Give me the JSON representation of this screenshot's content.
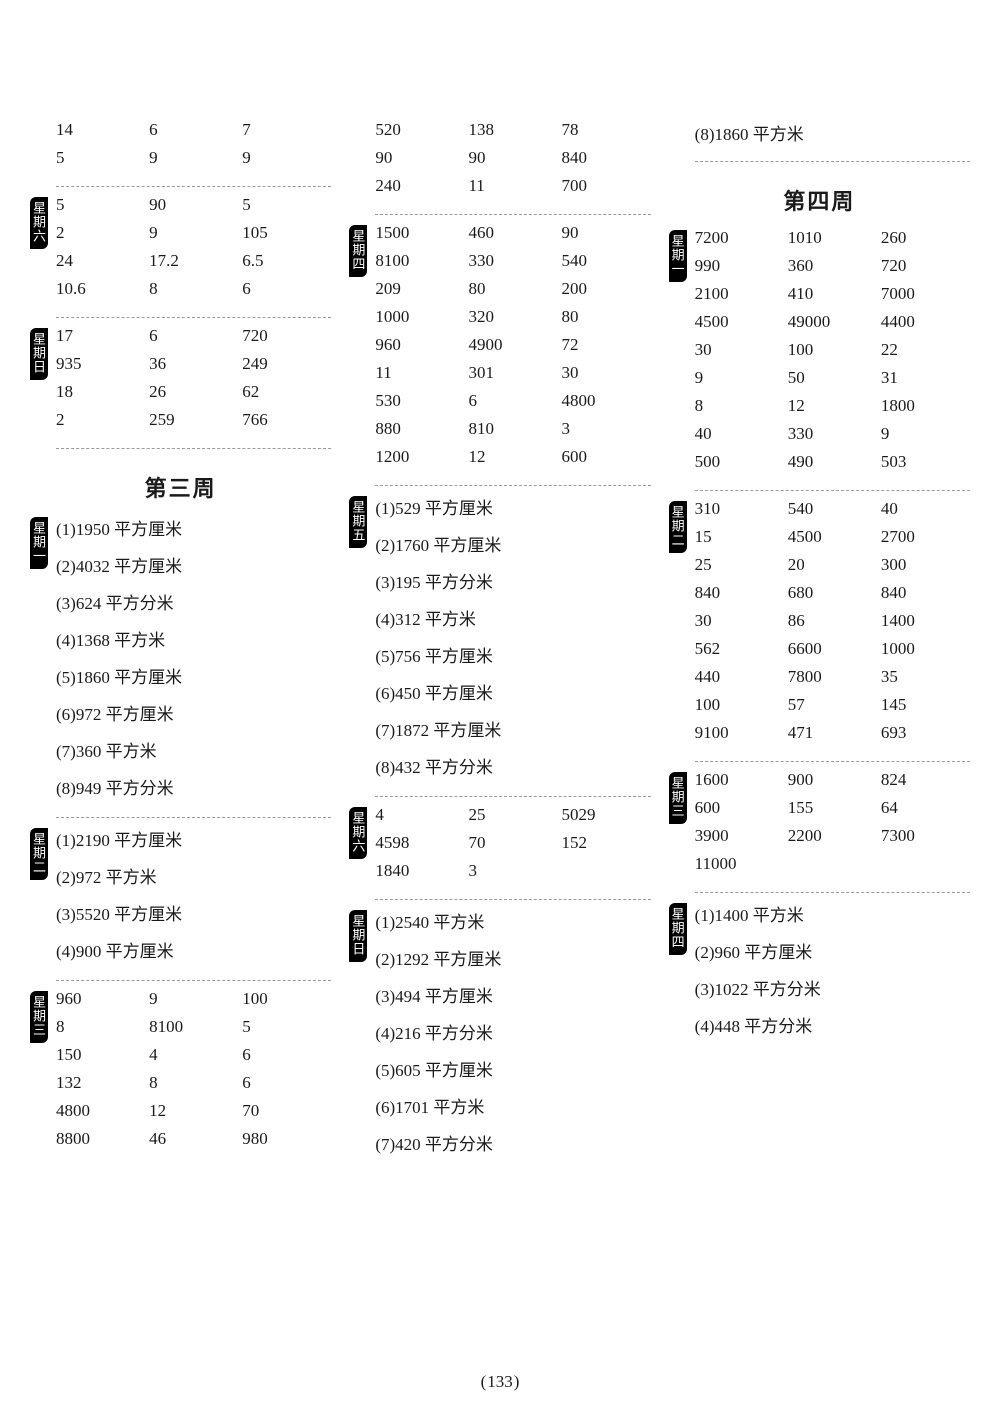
{
  "page_number": "133",
  "headings": {
    "week3": "第三周",
    "week4": "第四周"
  },
  "col1": {
    "top_rows": [
      "14",
      "6",
      "7",
      "5",
      "9",
      "9"
    ],
    "sat_label": "星期六",
    "sat_rows": [
      "5",
      "90",
      "5",
      "2",
      "9",
      "105",
      "24",
      "17.2",
      "6.5",
      "10.6",
      "8",
      "6"
    ],
    "sun_label": "星期日",
    "sun_rows": [
      "17",
      "6",
      "720",
      "935",
      "36",
      "249",
      "18",
      "26",
      "62",
      "2",
      "259",
      "766"
    ],
    "mon_label": "星期一",
    "mon_list": [
      "(1)1950 平方厘米",
      "(2)4032 平方厘米",
      "(3)624 平方分米",
      "(4)1368 平方米",
      "(5)1860 平方厘米",
      "(6)972 平方厘米",
      "(7)360 平方米",
      "(8)949 平方分米"
    ],
    "tue_label": "星期二",
    "tue_list": [
      "(1)2190 平方厘米",
      "(2)972 平方米",
      "(3)5520 平方厘米",
      "(4)900 平方厘米"
    ],
    "wed_label": "星期三",
    "wed_rows": [
      "960",
      "9",
      "100",
      "8",
      "8100",
      "5",
      "150",
      "4",
      "6",
      "132",
      "8",
      "6",
      "4800",
      "12",
      "70",
      "8800",
      "46",
      "980"
    ]
  },
  "col2": {
    "top_rows": [
      "520",
      "138",
      "78",
      "90",
      "90",
      "840",
      "240",
      "11",
      "700"
    ],
    "thu_label": "星期四",
    "thu_rows": [
      "1500",
      "460",
      "90",
      "8100",
      "330",
      "540",
      "209",
      "80",
      "200",
      "1000",
      "320",
      "80",
      "960",
      "4900",
      "72",
      "11",
      "301",
      "30",
      "530",
      "6",
      "4800",
      "880",
      "810",
      "3",
      "1200",
      "12",
      "600"
    ],
    "fri_label": "星期五",
    "fri_list": [
      "(1)529 平方厘米",
      "(2)1760 平方厘米",
      "(3)195 平方分米",
      "(4)312 平方米",
      "(5)756 平方厘米",
      "(6)450 平方厘米",
      "(7)1872 平方厘米",
      "(8)432 平方分米"
    ],
    "sat_label": "星期六",
    "sat_rows": [
      "4",
      "25",
      "5029",
      "4598",
      "70",
      "152",
      "1840",
      "3",
      ""
    ],
    "sun_label": "星期日",
    "sun_list": [
      "(1)2540 平方米",
      "(2)1292 平方厘米",
      "(3)494 平方厘米",
      "(4)216 平方分米",
      "(5)605 平方厘米",
      "(6)1701 平方米",
      "(7)420 平方分米"
    ]
  },
  "col3": {
    "top_line": "(8)1860 平方米",
    "mon_label": "星期一",
    "mon_rows": [
      "7200",
      "1010",
      "260",
      "990",
      "360",
      "720",
      "2100",
      "410",
      "7000",
      "4500",
      "49000",
      "4400",
      "30",
      "100",
      "22",
      "9",
      "50",
      "31",
      "8",
      "12",
      "1800",
      "40",
      "330",
      "9",
      "500",
      "490",
      "503"
    ],
    "tue_label": "星期二",
    "tue_rows": [
      "310",
      "540",
      "40",
      "15",
      "4500",
      "2700",
      "25",
      "20",
      "300",
      "840",
      "680",
      "840",
      "30",
      "86",
      "1400",
      "562",
      "6600",
      "1000",
      "440",
      "7800",
      "35",
      "100",
      "57",
      "145",
      "9100",
      "471",
      "693"
    ],
    "wed_label": "星期三",
    "wed_rows": [
      "1600",
      "900",
      "824",
      "600",
      "155",
      "64",
      "3900",
      "2200",
      "7300",
      "11000",
      "",
      ""
    ],
    "thu_label": "星期四",
    "thu_list": [
      "(1)1400 平方米",
      "(2)960 平方厘米",
      "(3)1022 平方分米",
      "(4)448 平方分米"
    ]
  }
}
